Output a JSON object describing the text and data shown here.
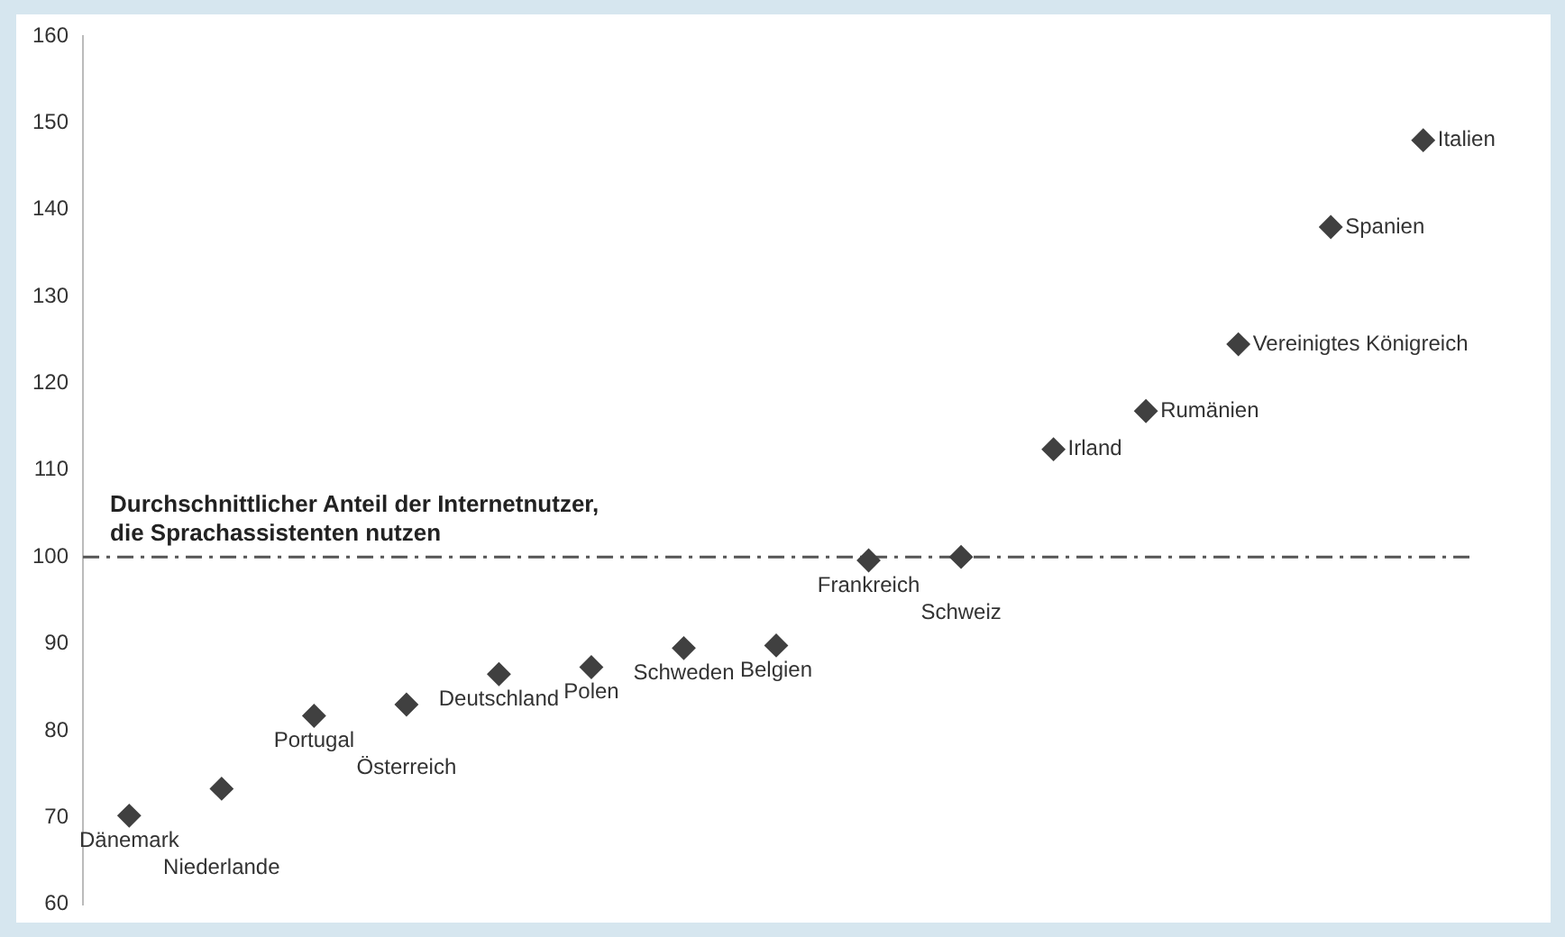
{
  "chart_data": {
    "type": "scatter",
    "categories": [
      null,
      null,
      null,
      null,
      null,
      null,
      null,
      null,
      null,
      null,
      null,
      null,
      null,
      null,
      null
    ],
    "series": [
      {
        "color": "#404040",
        "values": [
          70.2,
          73.3,
          81.7,
          83.0,
          86.5,
          87.3,
          89.5,
          89.8,
          99.6,
          100.0,
          112.4,
          116.8,
          124.5,
          138.0,
          148.0
        ],
        "value_labels": [
          "Dänemark",
          "Niederlande",
          "Portugal",
          "Österreich",
          "Deutschland",
          "Polen",
          "Schweden",
          "Belgien",
          "Frankreich",
          "Schweiz",
          "Irland",
          "Rumänien",
          "Vereinigtes Königreich",
          "Spanien",
          "Italien"
        ]
      }
    ],
    "ylim": [
      60,
      160
    ],
    "yticks": [
      60,
      70,
      80,
      90,
      100,
      110,
      120,
      130,
      140,
      150,
      160
    ],
    "ref_lines": [
      {
        "axis": "y",
        "value": 100,
        "label": "Durchschnittlicher Anteil der Internetnutzer, die Sprachassistenten nutzen",
        "color": "#555555",
        "line_style": "dashdot"
      }
    ],
    "tick_labels": "y",
    "grid": false,
    "legend": false,
    "marker": "diamond"
  }
}
